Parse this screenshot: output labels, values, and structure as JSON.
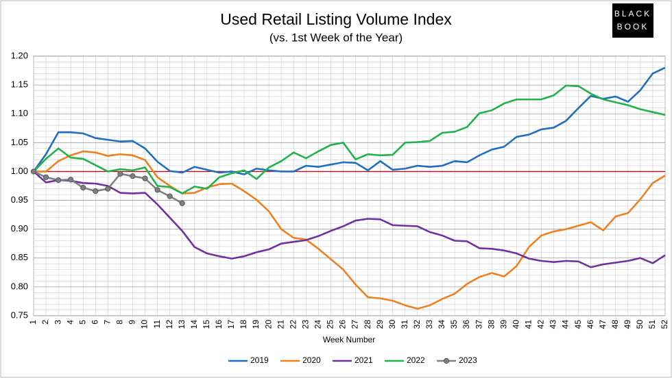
{
  "chart_data": {
    "type": "line",
    "title": "Used Retail Listing Volume Index",
    "subtitle": "(vs. 1st Week of the Year)",
    "logo": [
      "BLACK",
      "BOOK"
    ],
    "x_label": "Week Number",
    "categories": [
      "1",
      "2",
      "3",
      "4",
      "5",
      "6",
      "7",
      "8",
      "9",
      "10",
      "11",
      "12",
      "13",
      "14",
      "15",
      "16",
      "17",
      "18",
      "19",
      "20",
      "21",
      "22",
      "23",
      "24",
      "25",
      "26",
      "27",
      "28",
      "29",
      "30",
      "31",
      "32",
      "33",
      "34",
      "35",
      "36",
      "37",
      "38",
      "39",
      "40",
      "41",
      "42",
      "43",
      "44",
      "45",
      "46",
      "47",
      "48",
      "49",
      "50",
      "51",
      "52"
    ],
    "ylim": [
      0.75,
      1.2
    ],
    "yticks": [
      {
        "value": 0.75,
        "label": "0.75"
      },
      {
        "value": 0.8,
        "label": "0.80"
      },
      {
        "value": 0.85,
        "label": "0.85"
      },
      {
        "value": 0.9,
        "label": "0.90"
      },
      {
        "value": 0.95,
        "label": "0.95"
      },
      {
        "value": 1.0,
        "label": "1.00"
      },
      {
        "value": 1.05,
        "label": "1.05"
      },
      {
        "value": 1.1,
        "label": "1.10"
      },
      {
        "value": 1.15,
        "label": "1.15"
      },
      {
        "value": 1.2,
        "label": "1.20"
      }
    ],
    "grid": true,
    "minor_grid": true,
    "reference_line": {
      "value": 1.0,
      "color": "#d0021b"
    },
    "legend": "bottom",
    "series": [
      {
        "name": "2019",
        "color": "#1f6fc0",
        "values": [
          1.0,
          1.03,
          1.068,
          1.068,
          1.066,
          1.058,
          1.055,
          1.052,
          1.053,
          1.04,
          1.017,
          1.001,
          0.998,
          1.008,
          1.003,
          0.998,
          1.0,
          0.995,
          1.005,
          1.002,
          1.0,
          1.0,
          1.01,
          1.008,
          1.012,
          1.016,
          1.015,
          1.002,
          1.018,
          1.003,
          1.005,
          1.01,
          1.008,
          1.01,
          1.018,
          1.016,
          1.028,
          1.038,
          1.043,
          1.06,
          1.064,
          1.073,
          1.076,
          1.088,
          1.11,
          1.131,
          1.126,
          1.13,
          1.121,
          1.141,
          1.17,
          1.18
        ]
      },
      {
        "name": "2020",
        "color": "#f07f1e",
        "values": [
          1.0,
          1.0,
          1.018,
          1.028,
          1.035,
          1.033,
          1.027,
          1.03,
          1.028,
          1.02,
          0.99,
          0.975,
          0.962,
          0.963,
          0.972,
          0.978,
          0.979,
          0.966,
          0.951,
          0.931,
          0.9,
          0.885,
          0.882,
          0.866,
          0.848,
          0.83,
          0.804,
          0.782,
          0.78,
          0.776,
          0.768,
          0.762,
          0.768,
          0.779,
          0.788,
          0.805,
          0.817,
          0.824,
          0.818,
          0.836,
          0.869,
          0.889,
          0.896,
          0.9,
          0.906,
          0.912,
          0.898,
          0.922,
          0.928,
          0.952,
          0.98,
          0.993
        ]
      },
      {
        "name": "2021",
        "color": "#7030a0",
        "values": [
          1.0,
          0.981,
          0.985,
          0.984,
          0.98,
          0.979,
          0.975,
          0.963,
          0.962,
          0.963,
          0.943,
          0.92,
          0.897,
          0.869,
          0.858,
          0.853,
          0.849,
          0.853,
          0.86,
          0.865,
          0.875,
          0.878,
          0.881,
          0.888,
          0.897,
          0.905,
          0.915,
          0.918,
          0.917,
          0.907,
          0.906,
          0.905,
          0.895,
          0.889,
          0.88,
          0.879,
          0.867,
          0.866,
          0.863,
          0.858,
          0.849,
          0.845,
          0.843,
          0.845,
          0.844,
          0.834,
          0.839,
          0.842,
          0.845,
          0.85,
          0.841,
          0.855
        ]
      },
      {
        "name": "2022",
        "color": "#1fb34a",
        "values": [
          1.0,
          1.022,
          1.04,
          1.024,
          1.022,
          1.011,
          1.0,
          1.004,
          1.002,
          1.007,
          0.975,
          0.973,
          0.962,
          0.974,
          0.97,
          0.99,
          0.997,
          1.002,
          0.987,
          1.007,
          1.018,
          1.033,
          1.023,
          1.035,
          1.046,
          1.05,
          1.021,
          1.03,
          1.028,
          1.029,
          1.05,
          1.051,
          1.053,
          1.067,
          1.069,
          1.077,
          1.101,
          1.106,
          1.118,
          1.125,
          1.125,
          1.125,
          1.132,
          1.149,
          1.148,
          1.135,
          1.125,
          1.12,
          1.115,
          1.108,
          1.103,
          1.098
        ]
      },
      {
        "name": "2023",
        "color": "#808080",
        "markers": true,
        "values": [
          1.0,
          0.99,
          0.985,
          0.986,
          0.972,
          0.966,
          0.97,
          0.996,
          0.992,
          0.988,
          0.968,
          0.957,
          0.945,
          null,
          null,
          null,
          null,
          null,
          null,
          null,
          null,
          null,
          null,
          null,
          null,
          null,
          null,
          null,
          null,
          null,
          null,
          null,
          null,
          null,
          null,
          null,
          null,
          null,
          null,
          null,
          null,
          null,
          null,
          null,
          null,
          null,
          null,
          null,
          null,
          null,
          null,
          null
        ]
      }
    ]
  }
}
